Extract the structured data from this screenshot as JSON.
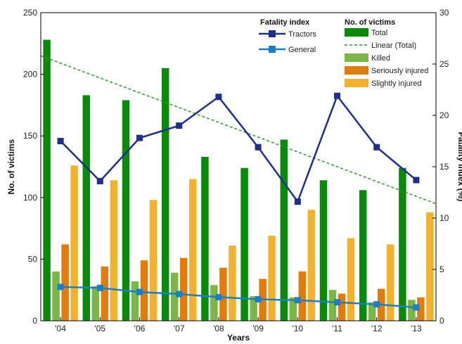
{
  "chart_data": {
    "type": "bar",
    "categories": [
      "'04",
      "'05",
      "'06",
      "'07",
      "'08",
      "'09",
      "'10",
      "'11",
      "'12",
      "'13"
    ],
    "xlabel": "Years",
    "ylabel": "No. of victims",
    "y2label": "Fatality index (%)",
    "ylim": [
      0,
      250
    ],
    "y2lim": [
      0,
      30
    ],
    "yticks": [
      0,
      50,
      100,
      150,
      200,
      250
    ],
    "y2ticks": [
      0,
      5,
      10,
      15,
      20,
      25,
      30
    ],
    "grid": false,
    "bar_series": [
      {
        "name": "Total",
        "color": "#0a8a0a",
        "values": [
          228,
          183,
          179,
          205,
          133,
          124,
          147,
          114,
          106,
          124
        ]
      },
      {
        "name": "Killed",
        "color": "#7ab648",
        "values": [
          40,
          28,
          32,
          39,
          29,
          20,
          19,
          25,
          15,
          17
        ]
      },
      {
        "name": "Seriously injured",
        "color": "#e07b0c",
        "values": [
          62,
          44,
          49,
          51,
          43,
          34,
          40,
          22,
          26,
          19
        ]
      },
      {
        "name": "Slightly injured",
        "color": "#f2b12e",
        "values": [
          126,
          114,
          98,
          115,
          61,
          69,
          90,
          67,
          62,
          88
        ]
      }
    ],
    "trendline": {
      "name": "Linear (Total)",
      "color": "#2a9a2a",
      "start": 215,
      "end": 95
    },
    "line_series": [
      {
        "name": "Tractors",
        "color": "#1f2f8c",
        "axis": "right",
        "values": [
          17.5,
          13.6,
          17.8,
          19.0,
          21.8,
          16.9,
          11.6,
          21.9,
          16.9,
          13.7
        ]
      },
      {
        "name": "General",
        "color": "#1a7fc4",
        "axis": "right",
        "values": [
          3.3,
          3.2,
          2.8,
          2.6,
          2.3,
          2.1,
          2.0,
          1.8,
          1.6,
          1.3
        ]
      }
    ],
    "legend": {
      "fatality_title": "Fatality index",
      "victims_title": "No. of victims"
    }
  }
}
